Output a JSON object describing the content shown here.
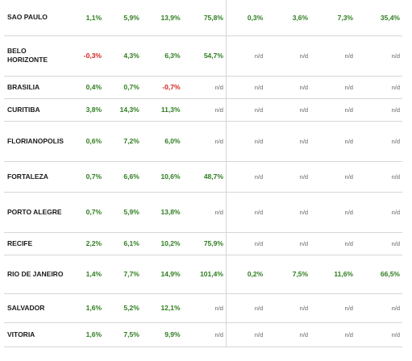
{
  "rows": [
    {
      "city": "SAO PAULO",
      "values": [
        "1,1%",
        "5,9%",
        "13,9%",
        "75,8%",
        "0,3%",
        "3,6%",
        "7,3%",
        "35,4%"
      ]
    },
    {
      "city": "BELO HORIZONTE",
      "values": [
        "-0,3%",
        "4,3%",
        "6,3%",
        "54,7%",
        "n/d",
        "n/d",
        "n/d",
        "n/d"
      ]
    },
    {
      "city": "BRASILIA",
      "values": [
        "0,4%",
        "0,7%",
        "-0,7%",
        "n/d",
        "n/d",
        "n/d",
        "n/d",
        "n/d"
      ]
    },
    {
      "city": "CURITIBA",
      "values": [
        "3,8%",
        "14,3%",
        "11,3%",
        "n/d",
        "n/d",
        "n/d",
        "n/d",
        "n/d"
      ]
    },
    {
      "city": "FLORIANOPOLIS",
      "values": [
        "0,6%",
        "7,2%",
        "6,0%",
        "n/d",
        "n/d",
        "n/d",
        "n/d",
        "n/d"
      ]
    },
    {
      "city": "FORTALEZA",
      "values": [
        "0,7%",
        "6,6%",
        "10,6%",
        "48,7%",
        "n/d",
        "n/d",
        "n/d",
        "n/d"
      ]
    },
    {
      "city": "PORTO ALEGRE",
      "values": [
        "0,7%",
        "5,9%",
        "13,8%",
        "n/d",
        "n/d",
        "n/d",
        "n/d",
        "n/d"
      ]
    },
    {
      "city": "RECIFE",
      "values": [
        "2,2%",
        "6,1%",
        "10,2%",
        "75,9%",
        "n/d",
        "n/d",
        "n/d",
        "n/d"
      ]
    },
    {
      "city": "RIO DE JANEIRO",
      "values": [
        "1,4%",
        "7,7%",
        "14,9%",
        "101,4%",
        "0,2%",
        "7,5%",
        "11,6%",
        "66,5%"
      ]
    },
    {
      "city": "SALVADOR",
      "values": [
        "1,6%",
        "5,2%",
        "12,1%",
        "n/d",
        "n/d",
        "n/d",
        "n/d",
        "n/d"
      ]
    },
    {
      "city": "VITORIA",
      "values": [
        "1,6%",
        "7,5%",
        "9,9%",
        "n/d",
        "n/d",
        "n/d",
        "n/d",
        "n/d"
      ]
    }
  ]
}
